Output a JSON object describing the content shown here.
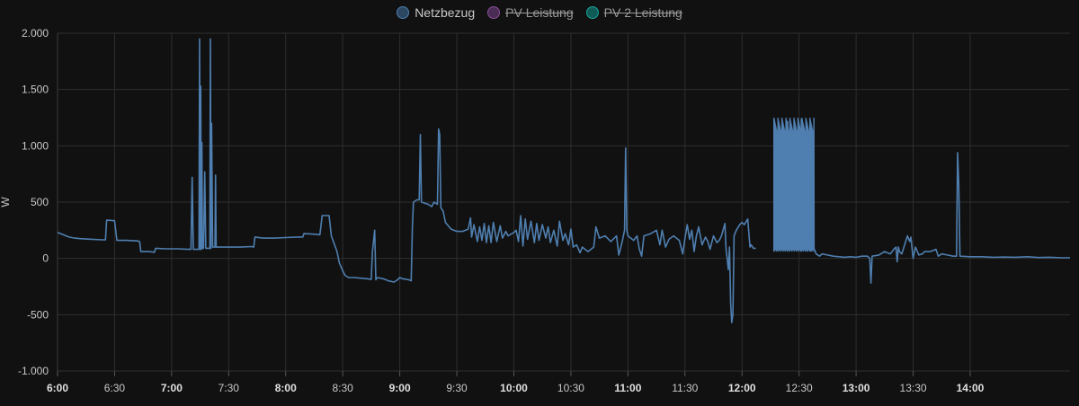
{
  "chart_data": {
    "type": "line",
    "title": "",
    "xlabel": "",
    "ylabel": "W",
    "ylim": [
      -1000,
      2000
    ],
    "y_ticks": [
      -1000,
      -500,
      0,
      500,
      1000,
      1500,
      2000
    ],
    "y_tick_labels": [
      "-1.000",
      "-500",
      "0",
      "500",
      "1.000",
      "1.500",
      "2.000"
    ],
    "x_range_hours": [
      6.0,
      14.875
    ],
    "x_ticks": [
      {
        "label": "6:00",
        "hour": 6.0,
        "major": true
      },
      {
        "label": "6:30",
        "hour": 6.5,
        "major": false
      },
      {
        "label": "7:00",
        "hour": 7.0,
        "major": true
      },
      {
        "label": "7:30",
        "hour": 7.5,
        "major": false
      },
      {
        "label": "8:00",
        "hour": 8.0,
        "major": true
      },
      {
        "label": "8:30",
        "hour": 8.5,
        "major": false
      },
      {
        "label": "9:00",
        "hour": 9.0,
        "major": true
      },
      {
        "label": "9:30",
        "hour": 9.5,
        "major": false
      },
      {
        "label": "10:00",
        "hour": 10.0,
        "major": true
      },
      {
        "label": "10:30",
        "hour": 10.5,
        "major": false
      },
      {
        "label": "11:00",
        "hour": 11.0,
        "major": true
      },
      {
        "label": "11:30",
        "hour": 11.5,
        "major": false
      },
      {
        "label": "12:00",
        "hour": 12.0,
        "major": true
      },
      {
        "label": "12:30",
        "hour": 12.5,
        "major": false
      },
      {
        "label": "13:00",
        "hour": 13.0,
        "major": true
      },
      {
        "label": "13:30",
        "hour": 13.5,
        "major": false
      },
      {
        "label": "14:00",
        "hour": 14.0,
        "major": true
      }
    ],
    "grid": true,
    "legend_position": "top-center",
    "series": [
      {
        "name": "Netzbezug",
        "color": "#4f7fb0",
        "visible": true,
        "points": [
          [
            6.0,
            230
          ],
          [
            6.05,
            210
          ],
          [
            6.1,
            190
          ],
          [
            6.15,
            180
          ],
          [
            6.2,
            175
          ],
          [
            6.3,
            170
          ],
          [
            6.4,
            165
          ],
          [
            6.42,
            165
          ],
          [
            6.43,
            340
          ],
          [
            6.5,
            335
          ],
          [
            6.52,
            160
          ],
          [
            6.6,
            160
          ],
          [
            6.7,
            155
          ],
          [
            6.72,
            150
          ],
          [
            6.73,
            60
          ],
          [
            6.8,
            60
          ],
          [
            6.85,
            55
          ],
          [
            6.86,
            90
          ],
          [
            6.95,
            85
          ],
          [
            7.05,
            85
          ],
          [
            7.15,
            80
          ],
          [
            7.17,
            80
          ],
          [
            7.18,
            720
          ],
          [
            7.19,
            80
          ],
          [
            7.24,
            80
          ],
          [
            7.245,
            1950
          ],
          [
            7.25,
            80
          ],
          [
            7.255,
            1530
          ],
          [
            7.26,
            80
          ],
          [
            7.265,
            1030
          ],
          [
            7.27,
            90
          ],
          [
            7.28,
            90
          ],
          [
            7.29,
            770
          ],
          [
            7.3,
            90
          ],
          [
            7.335,
            90
          ],
          [
            7.34,
            1950
          ],
          [
            7.345,
            90
          ],
          [
            7.35,
            1200
          ],
          [
            7.36,
            100
          ],
          [
            7.38,
            100
          ],
          [
            7.385,
            740
          ],
          [
            7.39,
            100
          ],
          [
            7.5,
            100
          ],
          [
            7.6,
            100
          ],
          [
            7.7,
            105
          ],
          [
            7.72,
            100
          ],
          [
            7.73,
            190
          ],
          [
            7.8,
            180
          ],
          [
            7.9,
            180
          ],
          [
            8.0,
            185
          ],
          [
            8.1,
            190
          ],
          [
            8.15,
            190
          ],
          [
            8.16,
            220
          ],
          [
            8.25,
            215
          ],
          [
            8.3,
            210
          ],
          [
            8.32,
            380
          ],
          [
            8.38,
            380
          ],
          [
            8.4,
            200
          ],
          [
            8.45,
            60
          ],
          [
            8.47,
            -40
          ],
          [
            8.5,
            -110
          ],
          [
            8.52,
            -150
          ],
          [
            8.55,
            -170
          ],
          [
            8.6,
            -170
          ],
          [
            8.7,
            -180
          ],
          [
            8.75,
            -185
          ],
          [
            8.76,
            60
          ],
          [
            8.78,
            250
          ],
          [
            8.79,
            -190
          ],
          [
            8.8,
            -170
          ],
          [
            8.85,
            -180
          ],
          [
            8.88,
            -190
          ],
          [
            8.9,
            -200
          ],
          [
            8.95,
            -210
          ],
          [
            8.98,
            -190
          ],
          [
            9.0,
            -170
          ],
          [
            9.02,
            -180
          ],
          [
            9.08,
            -190
          ],
          [
            9.1,
            -200
          ],
          [
            9.11,
            270
          ],
          [
            9.12,
            500
          ],
          [
            9.15,
            520
          ],
          [
            9.17,
            520
          ],
          [
            9.18,
            1100
          ],
          [
            9.19,
            500
          ],
          [
            9.25,
            480
          ],
          [
            9.28,
            460
          ],
          [
            9.3,
            500
          ],
          [
            9.33,
            480
          ],
          [
            9.34,
            1150
          ],
          [
            9.35,
            1100
          ],
          [
            9.36,
            450
          ],
          [
            9.38,
            420
          ],
          [
            9.4,
            320
          ],
          [
            9.45,
            260
          ],
          [
            9.5,
            240
          ],
          [
            9.55,
            240
          ],
          [
            9.6,
            260
          ],
          [
            9.62,
            360
          ],
          [
            9.63,
            190
          ],
          [
            9.65,
            300
          ],
          [
            9.68,
            150
          ],
          [
            9.7,
            280
          ],
          [
            9.72,
            160
          ],
          [
            9.74,
            310
          ],
          [
            9.76,
            140
          ],
          [
            9.78,
            290
          ],
          [
            9.8,
            140
          ],
          [
            9.82,
            320
          ],
          [
            9.85,
            150
          ],
          [
            9.88,
            290
          ],
          [
            9.9,
            180
          ],
          [
            9.93,
            240
          ],
          [
            9.95,
            200
          ],
          [
            10.0,
            230
          ],
          [
            10.02,
            250
          ],
          [
            10.04,
            150
          ],
          [
            10.06,
            380
          ],
          [
            10.08,
            110
          ],
          [
            10.1,
            350
          ],
          [
            10.12,
            170
          ],
          [
            10.15,
            330
          ],
          [
            10.18,
            140
          ],
          [
            10.2,
            310
          ],
          [
            10.22,
            160
          ],
          [
            10.25,
            300
          ],
          [
            10.28,
            180
          ],
          [
            10.3,
            280
          ],
          [
            10.32,
            140
          ],
          [
            10.35,
            250
          ],
          [
            10.38,
            110
          ],
          [
            10.4,
            330
          ],
          [
            10.43,
            160
          ],
          [
            10.45,
            220
          ],
          [
            10.48,
            120
          ],
          [
            10.5,
            260
          ],
          [
            10.52,
            100
          ],
          [
            10.55,
            120
          ],
          [
            10.58,
            50
          ],
          [
            10.6,
            100
          ],
          [
            10.65,
            60
          ],
          [
            10.7,
            100
          ],
          [
            10.72,
            280
          ],
          [
            10.75,
            180
          ],
          [
            10.8,
            200
          ],
          [
            10.85,
            150
          ],
          [
            10.9,
            200
          ],
          [
            10.92,
            30
          ],
          [
            10.95,
            150
          ],
          [
            10.97,
            250
          ],
          [
            10.98,
            980
          ],
          [
            10.99,
            250
          ],
          [
            11.0,
            200
          ],
          [
            11.05,
            160
          ],
          [
            11.08,
            200
          ],
          [
            11.1,
            80
          ],
          [
            11.12,
            20
          ],
          [
            11.14,
            200
          ],
          [
            11.2,
            220
          ],
          [
            11.25,
            250
          ],
          [
            11.28,
            120
          ],
          [
            11.3,
            250
          ],
          [
            11.33,
            100
          ],
          [
            11.36,
            170
          ],
          [
            11.4,
            200
          ],
          [
            11.45,
            160
          ],
          [
            11.48,
            40
          ],
          [
            11.5,
            180
          ],
          [
            11.52,
            300
          ],
          [
            11.54,
            170
          ],
          [
            11.56,
            250
          ],
          [
            11.58,
            60
          ],
          [
            11.6,
            200
          ],
          [
            11.62,
            280
          ],
          [
            11.65,
            120
          ],
          [
            11.68,
            190
          ],
          [
            11.7,
            150
          ],
          [
            11.72,
            80
          ],
          [
            11.75,
            200
          ],
          [
            11.78,
            140
          ],
          [
            11.8,
            160
          ],
          [
            11.82,
            200
          ],
          [
            11.85,
            310
          ],
          [
            11.86,
            80
          ],
          [
            11.87,
            0
          ],
          [
            11.88,
            -100
          ],
          [
            11.89,
            100
          ],
          [
            11.9,
            -400
          ],
          [
            11.91,
            -570
          ],
          [
            11.92,
            -500
          ],
          [
            11.93,
            200
          ],
          [
            11.95,
            250
          ],
          [
            11.98,
            300
          ],
          [
            12.0,
            320
          ],
          [
            12.02,
            300
          ],
          [
            12.05,
            350
          ],
          [
            12.07,
            100
          ],
          [
            12.08,
            120
          ],
          [
            12.1,
            90
          ],
          [
            12.12,
            90
          ]
        ]
      },
      {
        "name": "PV Leistung",
        "color": "#8a4f9a",
        "visible": false,
        "points": []
      },
      {
        "name": "PV 2 Leistung",
        "color": "#1aa39a",
        "visible": false,
        "points": []
      }
    ],
    "dense_band": {
      "series": "Netzbezug",
      "x_from": 12.28,
      "x_to": 12.63,
      "low": 60,
      "high": 1250,
      "extra_spikes": [
        [
          12.28,
          1250
        ],
        [
          12.4,
          1220
        ],
        [
          12.52,
          1240
        ],
        [
          12.57,
          1200
        ],
        [
          12.6,
          1180
        ]
      ]
    },
    "tail": {
      "series": "Netzbezug",
      "points": [
        [
          12.63,
          90
        ],
        [
          12.65,
          40
        ],
        [
          12.68,
          20
        ],
        [
          12.7,
          40
        ],
        [
          12.75,
          30
        ],
        [
          12.8,
          20
        ],
        [
          12.85,
          15
        ],
        [
          12.9,
          10
        ],
        [
          12.95,
          15
        ],
        [
          13.0,
          10
        ],
        [
          13.05,
          20
        ],
        [
          13.1,
          20
        ],
        [
          13.12,
          0
        ],
        [
          13.13,
          -220
        ],
        [
          13.14,
          20
        ],
        [
          13.2,
          30
        ],
        [
          13.25,
          60
        ],
        [
          13.3,
          40
        ],
        [
          13.33,
          80
        ],
        [
          13.35,
          100
        ],
        [
          13.36,
          -30
        ],
        [
          13.37,
          100
        ],
        [
          13.38,
          60
        ],
        [
          13.4,
          40
        ],
        [
          13.45,
          200
        ],
        [
          13.47,
          150
        ],
        [
          13.48,
          190
        ],
        [
          13.5,
          0
        ],
        [
          13.52,
          100
        ],
        [
          13.55,
          30
        ],
        [
          13.58,
          40
        ],
        [
          13.6,
          60
        ],
        [
          13.65,
          60
        ],
        [
          13.7,
          80
        ],
        [
          13.72,
          20
        ],
        [
          13.75,
          40
        ],
        [
          13.8,
          30
        ],
        [
          13.85,
          20
        ],
        [
          13.88,
          20
        ],
        [
          13.89,
          940
        ],
        [
          13.9,
          650
        ],
        [
          13.91,
          20
        ],
        [
          14.0,
          15
        ],
        [
          14.1,
          15
        ],
        [
          14.2,
          10
        ],
        [
          14.3,
          12
        ],
        [
          14.4,
          10
        ],
        [
          14.5,
          15
        ],
        [
          14.6,
          8
        ],
        [
          14.7,
          10
        ],
        [
          14.8,
          5
        ],
        [
          14.875,
          5
        ]
      ]
    }
  }
}
